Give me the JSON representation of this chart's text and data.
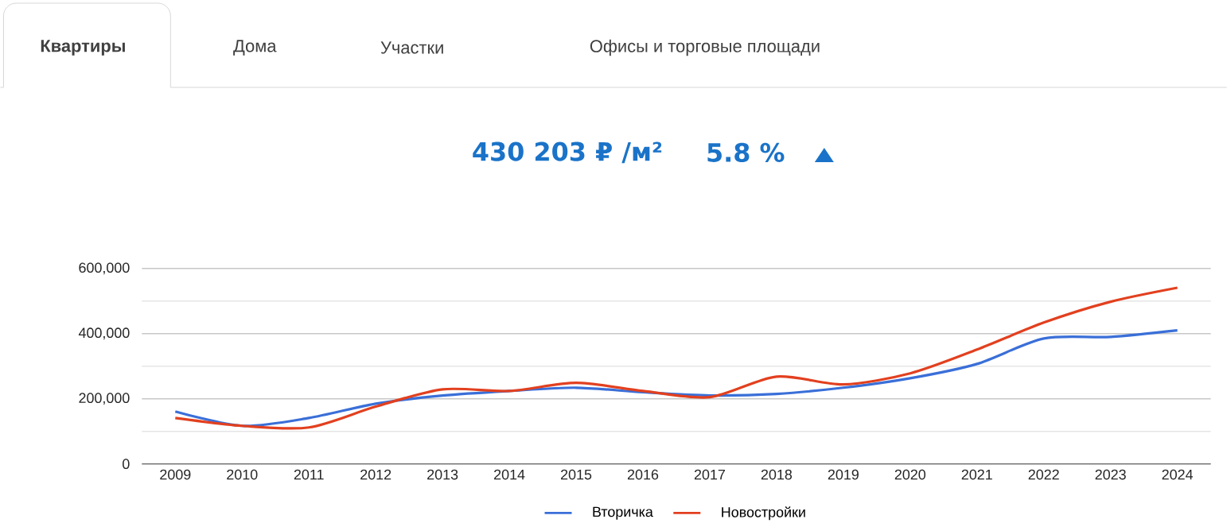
{
  "chart_data": {
    "type": "line",
    "title": "430 203 ₽ /м²",
    "subtitle": "5.8 %",
    "annotations": [
      "Квартиры",
      "Дома",
      "Участки",
      "Офисы и торговые площади"
    ],
    "categories": [
      "2009",
      "2010",
      "2011",
      "2012",
      "2013",
      "2014",
      "2015",
      "2016",
      "2017",
      "2018",
      "2019",
      "2020",
      "2021",
      "2022",
      "2023",
      "2024"
    ],
    "series": [
      {
        "name": "Вторичка",
        "color": "#3a6fd8",
        "values": [
          161000,
          117000,
          141000,
          185000,
          210000,
          224000,
          234000,
          220000,
          210000,
          215000,
          234000,
          263000,
          307000,
          385000,
          390000,
          410000
        ]
      },
      {
        "name": "Новостройки",
        "color": "#e2401f",
        "values": [
          141000,
          117000,
          112000,
          176000,
          229000,
          224000,
          249000,
          224000,
          205000,
          268000,
          244000,
          278000,
          351000,
          434000,
          498000,
          541000
        ]
      }
    ],
    "ylim": [
      0,
      600000
    ],
    "yticks": [
      {
        "value": 0,
        "label": "0"
      },
      {
        "value": 200000,
        "label": "200,000"
      },
      {
        "value": 400000,
        "label": "400,000"
      },
      {
        "value": 600000,
        "label": "600,000"
      }
    ],
    "grid": "y",
    "legend": "bottom",
    "marker": "none",
    "line_style": "solid"
  }
}
